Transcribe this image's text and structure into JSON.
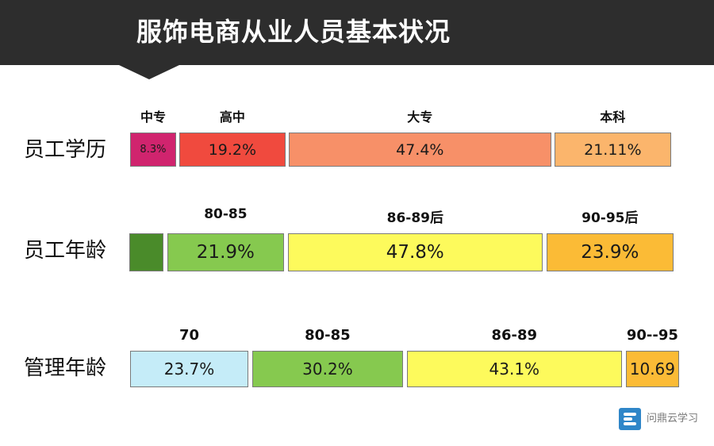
{
  "title": "服饰电商从业人员基本状况",
  "watermark": "问鼎云学习",
  "chart_data": {
    "type": "bar",
    "orientation": "horizontal",
    "stacked": true,
    "rows": [
      {
        "label": "员工学历",
        "segments": [
          {
            "category": "中专",
            "value": 8.3,
            "display": "8.3%",
            "color": "#d0246e"
          },
          {
            "category": "高中",
            "value": 19.2,
            "display": "19.2%",
            "color": "#f04a3e"
          },
          {
            "category": "大专",
            "value": 47.4,
            "display": "47.4%",
            "color": "#f79068"
          },
          {
            "category": "本科",
            "value": 21.11,
            "display": "21.11%",
            "color": "#fbb56c"
          }
        ]
      },
      {
        "label": "员工年龄",
        "segments": [
          {
            "category": "",
            "value": 6.4,
            "display": "",
            "color": "#4a8b2a"
          },
          {
            "category": "80-85",
            "value": 21.9,
            "display": "21.9%",
            "color": "#86c94f"
          },
          {
            "category": "86-89后",
            "value": 47.8,
            "display": "47.8%",
            "color": "#fdfa5c"
          },
          {
            "category": "90-95后",
            "value": 23.9,
            "display": "23.9%",
            "color": "#fbbb36"
          }
        ]
      },
      {
        "label": "管理年龄",
        "segments": [
          {
            "category": "70",
            "value": 23.7,
            "display": "23.7%",
            "color": "#c5ecf8"
          },
          {
            "category": "80-85",
            "value": 30.2,
            "display": "30.2%",
            "color": "#86c94f"
          },
          {
            "category": "86-89",
            "value": 43.1,
            "display": "43.1%",
            "color": "#fdfa5c"
          },
          {
            "category": "90--95",
            "value": 10.69,
            "display": "10.69",
            "color": "#fbbb36"
          }
        ]
      }
    ]
  }
}
